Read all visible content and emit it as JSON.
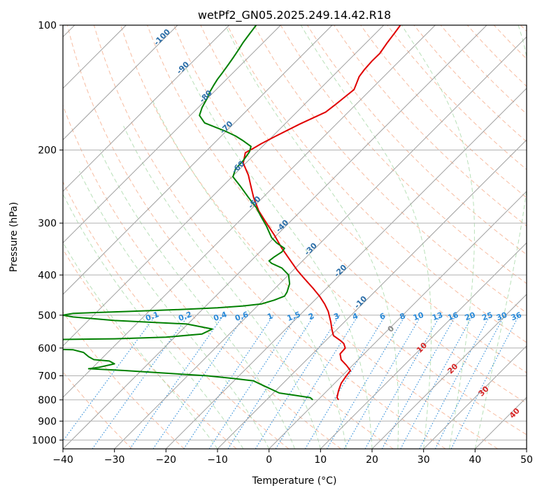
{
  "chart_data": {
    "type": "line",
    "title": "wetPf2_GN05.2025.249.14.42.R18",
    "xlabel": "Temperature (°C)",
    "ylabel": "Pressure (hPa)",
    "xlim": [
      -40,
      50
    ],
    "ylim": [
      1050,
      100
    ],
    "y_scale": "log",
    "x_ticks": [
      "-40",
      "-30",
      "-20",
      "-10",
      "0",
      "10",
      "20",
      "30",
      "40",
      "50"
    ],
    "y_ticks": [
      "100",
      "200",
      "300",
      "400",
      "500",
      "600",
      "700",
      "800",
      "900",
      "1000"
    ],
    "grid": true,
    "colors": {
      "temperature": "#e00000",
      "dewpoint": "#008000",
      "isotherm": "#a0a0a0",
      "dry_adiabat": "#f4a582",
      "moist_adiabat": "#a6d8a6",
      "mixing_ratio": "#2a8ad8",
      "iso_label": "#2b6ea8",
      "hodo_label": "#d62828"
    },
    "series": [
      {
        "name": "",
        "key": "temperature",
        "points": [
          [
            13.5,
            800
          ],
          [
            13.2,
            790
          ],
          [
            13.5,
            760
          ],
          [
            14.0,
            730
          ],
          [
            15.0,
            700
          ],
          [
            15.8,
            680
          ],
          [
            15.0,
            660
          ],
          [
            14.0,
            640
          ],
          [
            13.8,
            620
          ],
          [
            14.8,
            600
          ],
          [
            14.5,
            585
          ],
          [
            13.8,
            575
          ],
          [
            12.5,
            560
          ],
          [
            12.2,
            540
          ],
          [
            12.0,
            520
          ],
          [
            11.5,
            490
          ],
          [
            10.8,
            470
          ],
          [
            9.8,
            450
          ],
          [
            8.5,
            430
          ],
          [
            7.0,
            410
          ],
          [
            5.5,
            390
          ],
          [
            4.2,
            370
          ],
          [
            2.5,
            345
          ],
          [
            1.0,
            320
          ],
          [
            -0.5,
            300
          ],
          [
            -2.0,
            280
          ],
          [
            -3.0,
            260
          ],
          [
            -3.5,
            245
          ],
          [
            -4.0,
            230
          ],
          [
            -5.0,
            215
          ],
          [
            -4.6,
            203
          ],
          [
            -3.0,
            198
          ],
          [
            -1.5,
            193
          ],
          [
            1.0,
            186
          ],
          [
            6.0,
            173
          ],
          [
            11.0,
            162
          ],
          [
            13.0,
            155
          ],
          [
            15.0,
            148
          ],
          [
            16.5,
            143
          ],
          [
            17.0,
            138
          ],
          [
            17.5,
            133
          ],
          [
            18.5,
            128
          ],
          [
            20.0,
            122
          ],
          [
            21.5,
            117
          ],
          [
            23.0,
            110
          ],
          [
            24.5,
            104
          ],
          [
            25.5,
            100
          ]
        ]
      },
      {
        "name": "",
        "key": "dewpoint",
        "points": [
          [
            8.5,
            800
          ],
          [
            8.0,
            790
          ],
          [
            5.0,
            780
          ],
          [
            2.0,
            770
          ],
          [
            -1.0,
            740
          ],
          [
            -3.0,
            720
          ],
          [
            -7.0,
            710
          ],
          [
            -12.0,
            700
          ],
          [
            -20.0,
            690
          ],
          [
            -28.0,
            680
          ],
          [
            -35.0,
            673
          ],
          [
            -33.0,
            668
          ],
          [
            -30.0,
            655
          ],
          [
            -31.0,
            645
          ],
          [
            -34.0,
            640
          ],
          [
            -35.0,
            630
          ],
          [
            -36.0,
            615
          ],
          [
            -38.0,
            606
          ],
          [
            -40.0,
            605
          ],
          [
            -40.5,
            605
          ],
          [
            -40.0,
            572
          ],
          [
            -30.0,
            570
          ],
          [
            -20.0,
            565
          ],
          [
            -13.0,
            555
          ],
          [
            -11.0,
            540
          ],
          [
            -16.0,
            525
          ],
          [
            -30.0,
            515
          ],
          [
            -38.0,
            505
          ],
          [
            -40.0,
            500
          ],
          [
            -38.0,
            495
          ],
          [
            -28.0,
            490
          ],
          [
            -18.0,
            485
          ],
          [
            -10.0,
            480
          ],
          [
            -5.0,
            475
          ],
          [
            -1.5,
            470
          ],
          [
            1.0,
            460
          ],
          [
            3.0,
            450
          ],
          [
            3.5,
            440
          ],
          [
            4.0,
            420
          ],
          [
            3.8,
            400
          ],
          [
            2.5,
            385
          ],
          [
            0.5,
            375
          ],
          [
            0.0,
            370
          ],
          [
            1.0,
            362
          ],
          [
            2.5,
            352
          ],
          [
            3.0,
            345
          ],
          [
            1.5,
            335
          ],
          [
            0.5,
            325
          ],
          [
            -0.5,
            305
          ],
          [
            -1.5,
            290
          ],
          [
            -2.5,
            275
          ],
          [
            -4.0,
            260
          ],
          [
            -5.5,
            245
          ],
          [
            -7.0,
            232
          ],
          [
            -6.5,
            222
          ],
          [
            -5.0,
            212
          ],
          [
            -3.8,
            202
          ],
          [
            -3.5,
            196
          ],
          [
            -5.0,
            190
          ],
          [
            -6.5,
            185
          ],
          [
            -8.5,
            180
          ],
          [
            -10.5,
            176
          ],
          [
            -12.5,
            172
          ],
          [
            -13.5,
            165
          ],
          [
            -13.0,
            158
          ],
          [
            -12.0,
            150
          ],
          [
            -11.5,
            145
          ],
          [
            -10.8,
            140
          ],
          [
            -10.0,
            135
          ],
          [
            -9.0,
            130
          ],
          [
            -8.0,
            125
          ],
          [
            -7.0,
            120
          ],
          [
            -6.0,
            115
          ],
          [
            -5.0,
            110
          ],
          [
            -3.8,
            105
          ],
          [
            -2.5,
            100
          ]
        ]
      }
    ],
    "isotherm_labels": [
      "-100",
      "-90",
      "-80",
      "-70",
      "-60",
      "-50",
      "-40",
      "-30",
      "-20",
      "-10"
    ],
    "mixing_ratio_labels": [
      "0.1",
      "0.2",
      "0.4",
      "0.6",
      "1",
      "1.5",
      "2",
      "3",
      "4",
      "6",
      "8",
      "10",
      "13",
      "16",
      "20",
      "25",
      "30",
      "36"
    ],
    "hodo_labels": [
      "0",
      "10",
      "20",
      "30",
      "40"
    ]
  }
}
